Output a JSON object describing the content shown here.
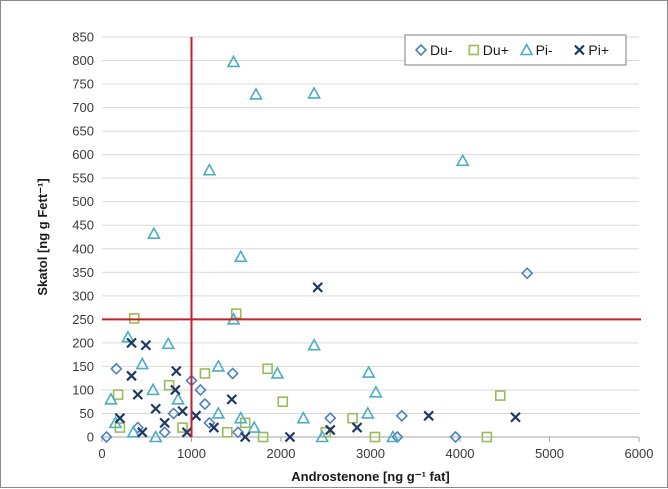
{
  "chart_data": {
    "type": "scatter",
    "xlabel": "Androstenone [ng g⁻¹ fat]",
    "ylabel": "Skatol [ng g Fett⁻¹]",
    "xlim": [
      0,
      6000
    ],
    "ylim": [
      0,
      850
    ],
    "xticks": [
      0,
      1000,
      2000,
      3000,
      4000,
      5000,
      6000
    ],
    "yticks": [
      0,
      50,
      100,
      150,
      200,
      250,
      300,
      350,
      400,
      450,
      500,
      550,
      600,
      650,
      700,
      750,
      800,
      850
    ],
    "grid": "horizontal",
    "legend_position": "top-right",
    "threshold_lines": {
      "x": 1000,
      "y": 250,
      "color": "#c0202a"
    },
    "series": [
      {
        "name": "Du-",
        "marker": "diamond",
        "color": "#4f81bd",
        "points": [
          [
            4750,
            348
          ],
          [
            160,
            145
          ],
          [
            1460,
            135
          ],
          [
            1100,
            100
          ],
          [
            1000,
            120
          ],
          [
            1150,
            70
          ],
          [
            1520,
            10
          ],
          [
            800,
            50
          ],
          [
            2550,
            40
          ],
          [
            3350,
            45
          ],
          [
            3950,
            0
          ],
          [
            3300,
            0
          ],
          [
            50,
            0
          ],
          [
            400,
            20
          ],
          [
            700,
            10
          ],
          [
            1200,
            30
          ]
        ]
      },
      {
        "name": "Du+",
        "marker": "square",
        "color": "#9bbb59",
        "points": [
          [
            1500,
            262
          ],
          [
            360,
            252
          ],
          [
            1150,
            135
          ],
          [
            1850,
            145
          ],
          [
            2020,
            75
          ],
          [
            4450,
            88
          ],
          [
            2800,
            40
          ],
          [
            1600,
            30
          ],
          [
            2500,
            10
          ],
          [
            3050,
            0
          ],
          [
            4300,
            0
          ],
          [
            900,
            20
          ],
          [
            180,
            90
          ],
          [
            750,
            110
          ],
          [
            200,
            20
          ],
          [
            1400,
            10
          ],
          [
            1800,
            0
          ]
        ]
      },
      {
        "name": "Pi-",
        "marker": "triangle",
        "color": "#4bacc6",
        "points": [
          [
            1470,
            797
          ],
          [
            1720,
            728
          ],
          [
            2370,
            730
          ],
          [
            4030,
            587
          ],
          [
            1200,
            567
          ],
          [
            580,
            432
          ],
          [
            1550,
            383
          ],
          [
            1470,
            250
          ],
          [
            290,
            212
          ],
          [
            740,
            198
          ],
          [
            2370,
            195
          ],
          [
            1300,
            150
          ],
          [
            450,
            155
          ],
          [
            1960,
            135
          ],
          [
            2980,
            137
          ],
          [
            570,
            100
          ],
          [
            3060,
            95
          ],
          [
            100,
            80
          ],
          [
            850,
            80
          ],
          [
            2250,
            40
          ],
          [
            2970,
            50
          ],
          [
            3250,
            0
          ],
          [
            2460,
            0
          ],
          [
            1550,
            40
          ],
          [
            1700,
            20
          ],
          [
            1300,
            50
          ],
          [
            150,
            30
          ],
          [
            350,
            10
          ],
          [
            600,
            0
          ]
        ]
      },
      {
        "name": "Pi+",
        "marker": "x",
        "color": "#1f3864",
        "points": [
          [
            2410,
            318
          ],
          [
            330,
            200
          ],
          [
            490,
            195
          ],
          [
            830,
            140
          ],
          [
            330,
            130
          ],
          [
            820,
            100
          ],
          [
            2850,
            20
          ],
          [
            3650,
            45
          ],
          [
            4620,
            42
          ],
          [
            1450,
            80
          ],
          [
            2100,
            0
          ],
          [
            2550,
            15
          ],
          [
            900,
            55
          ],
          [
            1050,
            45
          ],
          [
            600,
            60
          ],
          [
            400,
            90
          ],
          [
            200,
            40
          ],
          [
            700,
            30
          ],
          [
            1250,
            20
          ],
          [
            1600,
            0
          ],
          [
            450,
            10
          ],
          [
            950,
            10
          ]
        ]
      }
    ]
  }
}
